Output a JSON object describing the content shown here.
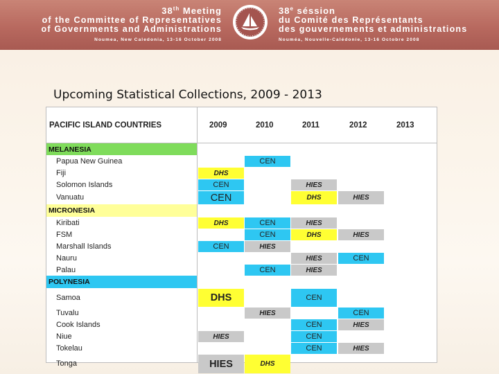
{
  "banner": {
    "left_meeting_num": "38",
    "left_meeting_sup": "th",
    "left_meeting_word": "Meeting",
    "left_line1": "of the Committee of Representatives",
    "left_line2": "of Governments and Administrations",
    "left_place": "Noumea, New Caledonia, 13-16 October 2008",
    "right_meeting_num": "38",
    "right_meeting_sup": "e",
    "right_meeting_word": "séssion",
    "right_line1": "du Comité des Représentants",
    "right_line2": "des gouvernements et administrations",
    "right_place": "Nouméa, Nouvelle-Calédonie, 13-16 Octobre 2008"
  },
  "title": "Upcoming Statistical Collections, 2009 - 2013",
  "table": {
    "header_label": "PACIFIC ISLAND COUNTRIES",
    "years": [
      "2009",
      "2010",
      "2011",
      "2012",
      "2013"
    ],
    "rows": [
      {
        "type": "region",
        "label": "MELANESIA"
      },
      {
        "type": "country",
        "label": "Papua New Guinea",
        "cells": [
          "",
          "CEN",
          "",
          "",
          ""
        ]
      },
      {
        "type": "country",
        "label": "Fiji",
        "cells": [
          "DHS",
          "",
          "",
          "",
          ""
        ]
      },
      {
        "type": "country",
        "label": "Solomon Islands",
        "cells": [
          "CEN",
          "",
          "HIES",
          "",
          ""
        ]
      },
      {
        "type": "country",
        "label": "Vanuatu",
        "cells": [
          "CEN",
          "",
          "DHS",
          "HIES",
          ""
        ]
      },
      {
        "type": "region",
        "label": "MICRONESIA"
      },
      {
        "type": "country",
        "label": "Kiribati",
        "cells": [
          "DHS",
          "CEN",
          "HIES",
          "",
          ""
        ]
      },
      {
        "type": "country",
        "label": "FSM",
        "cells": [
          "",
          "CEN",
          "DHS",
          "HIES",
          ""
        ]
      },
      {
        "type": "country",
        "label": "Marshall Islands",
        "cells": [
          "CEN",
          "HIES",
          "",
          "",
          ""
        ]
      },
      {
        "type": "country",
        "label": "Nauru",
        "cells": [
          "",
          "",
          "HIES",
          "CEN",
          ""
        ]
      },
      {
        "type": "country",
        "label": "Palau",
        "cells": [
          "",
          "CEN",
          "HIES",
          "",
          ""
        ]
      },
      {
        "type": "region",
        "label": "POLYNESIA"
      },
      {
        "type": "country",
        "label": "Samoa",
        "cells": [
          "DHS",
          "",
          "CEN",
          "",
          ""
        ]
      },
      {
        "type": "country",
        "label": "Tuvalu",
        "cells": [
          "",
          "HIES",
          "",
          "CEN",
          ""
        ]
      },
      {
        "type": "country",
        "label": "Cook Islands",
        "cells": [
          "",
          "",
          "CEN",
          "HIES",
          ""
        ]
      },
      {
        "type": "country",
        "label": "Niue",
        "cells": [
          "HIES",
          "",
          "CEN",
          "",
          ""
        ]
      },
      {
        "type": "country",
        "label": "Tokelau",
        "cells": [
          "",
          "",
          "CEN",
          "HIES",
          ""
        ]
      },
      {
        "type": "country",
        "label": "Tonga",
        "cells": [
          "HIES",
          "DHS",
          "",
          "",
          ""
        ]
      }
    ]
  },
  "colors": {
    "CEN": "#2ec7f2",
    "HIES": "#c9c9c9",
    "DHS": "#ffff33",
    "MELANESIA": "#7fdc5b",
    "MICRONESIA": "#ffff99",
    "POLYNESIA": "#2ec7f2"
  },
  "icons": [
    "spc-logo-icon"
  ]
}
